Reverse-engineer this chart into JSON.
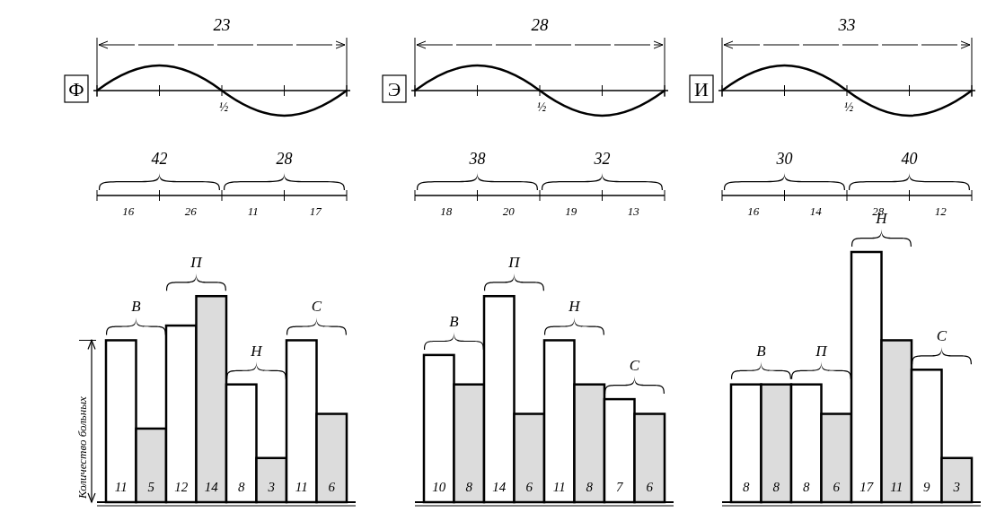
{
  "chart_data": [
    {
      "type": "bar",
      "title": "Ф",
      "ylabel": "Количество больных",
      "categories": [
        null,
        null,
        null,
        null,
        null,
        null,
        null,
        null
      ],
      "values": [
        11,
        5,
        12,
        14,
        8,
        3,
        11,
        6
      ],
      "colors": [
        "#ffffff",
        "#dcdcdc",
        "#ffffff",
        "#dcdcdc",
        "#ffffff",
        "#dcdcdc",
        "#ffffff",
        "#dcdcdc"
      ],
      "data_labels": true,
      "annotations": [
        "23",
        "½",
        "42",
        "28",
        "16",
        "26",
        "11",
        "17",
        "В",
        "П",
        "Н",
        "С"
      ]
    },
    {
      "type": "bar",
      "title": "Э",
      "categories": [
        null,
        null,
        null,
        null,
        null,
        null,
        null,
        null
      ],
      "values": [
        10,
        8,
        14,
        6,
        11,
        8,
        7,
        6
      ],
      "colors": [
        "#ffffff",
        "#dcdcdc",
        "#ffffff",
        "#dcdcdc",
        "#ffffff",
        "#dcdcdc",
        "#ffffff",
        "#dcdcdc"
      ],
      "data_labels": true,
      "annotations": [
        "28",
        "½",
        "38",
        "32",
        "18",
        "20",
        "19",
        "13",
        "В",
        "П",
        "Н",
        "С"
      ]
    },
    {
      "type": "bar",
      "title": "И",
      "categories": [
        null,
        null,
        null,
        null,
        null,
        null,
        null,
        null
      ],
      "values": [
        8,
        8,
        8,
        6,
        17,
        11,
        9,
        3
      ],
      "colors": [
        "#ffffff",
        "#dcdcdc",
        "#ffffff",
        "#dcdcdc",
        "#ffffff",
        "#dcdcdc",
        "#ffffff",
        "#dcdcdc"
      ],
      "data_labels": true,
      "annotations": [
        "33",
        "½",
        "30",
        "40",
        "16",
        "14",
        "28",
        "12",
        "В",
        "П",
        "Н",
        "С"
      ]
    }
  ]
}
